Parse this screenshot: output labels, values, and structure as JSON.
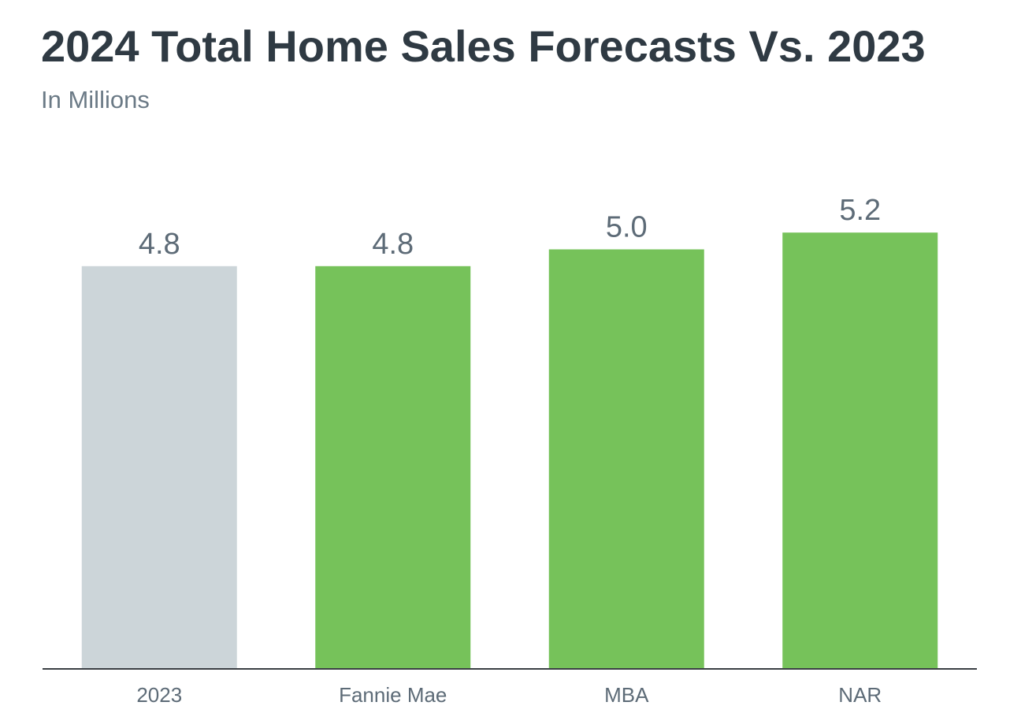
{
  "chart_data": {
    "type": "bar",
    "title": "2024 Total Home Sales Forecasts Vs. 2023",
    "subtitle": "In Millions",
    "categories": [
      "2023",
      "Fannie Mae",
      "MBA",
      "NAR"
    ],
    "values": [
      4.8,
      4.8,
      5.0,
      5.2
    ],
    "value_labels": [
      "4.8",
      "4.8",
      "5.0",
      "5.2"
    ],
    "colors": [
      "#ccd5d9",
      "#76c25a",
      "#76c25a",
      "#76c25a"
    ],
    "axis_color": "#3a3f44",
    "xlabel": "",
    "ylabel": "",
    "ylim": [
      0,
      7.7
    ],
    "grid": false,
    "legend": "none"
  }
}
